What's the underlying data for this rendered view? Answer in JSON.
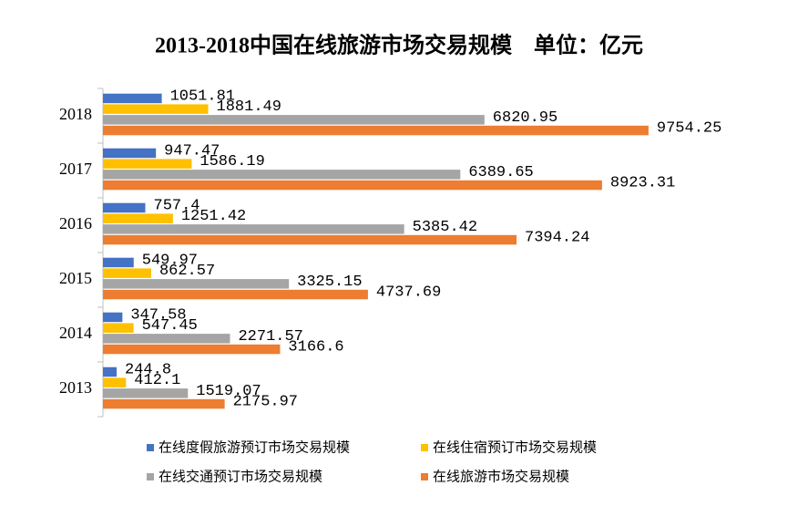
{
  "chart_data": {
    "type": "bar",
    "orientation": "horizontal",
    "title": "2013-2018中国在线旅游市场交易规模　单位：亿元",
    "categories": [
      "2013",
      "2014",
      "2015",
      "2016",
      "2017",
      "2018"
    ],
    "series": [
      {
        "name": "在线度假旅游预订市场交易规模",
        "color": "#4472c4",
        "values": [
          244.8,
          347.58,
          549.97,
          757.4,
          947.47,
          1051.81
        ]
      },
      {
        "name": "在线住宿预订市场交易规模",
        "color": "#ffc000",
        "values": [
          412.1,
          547.45,
          862.57,
          1251.42,
          1586.19,
          1881.49
        ]
      },
      {
        "name": "在线交通预订市场交易规模",
        "color": "#a5a5a5",
        "values": [
          1519.07,
          2271.57,
          3325.15,
          5385.42,
          6389.65,
          6820.95
        ]
      },
      {
        "name": "在线旅游市场交易规模",
        "color": "#ed7d31",
        "values": [
          2175.97,
          3166.6,
          4737.69,
          7394.24,
          8923.31,
          9754.25
        ]
      }
    ],
    "xlim": [
      0,
      10000
    ]
  }
}
